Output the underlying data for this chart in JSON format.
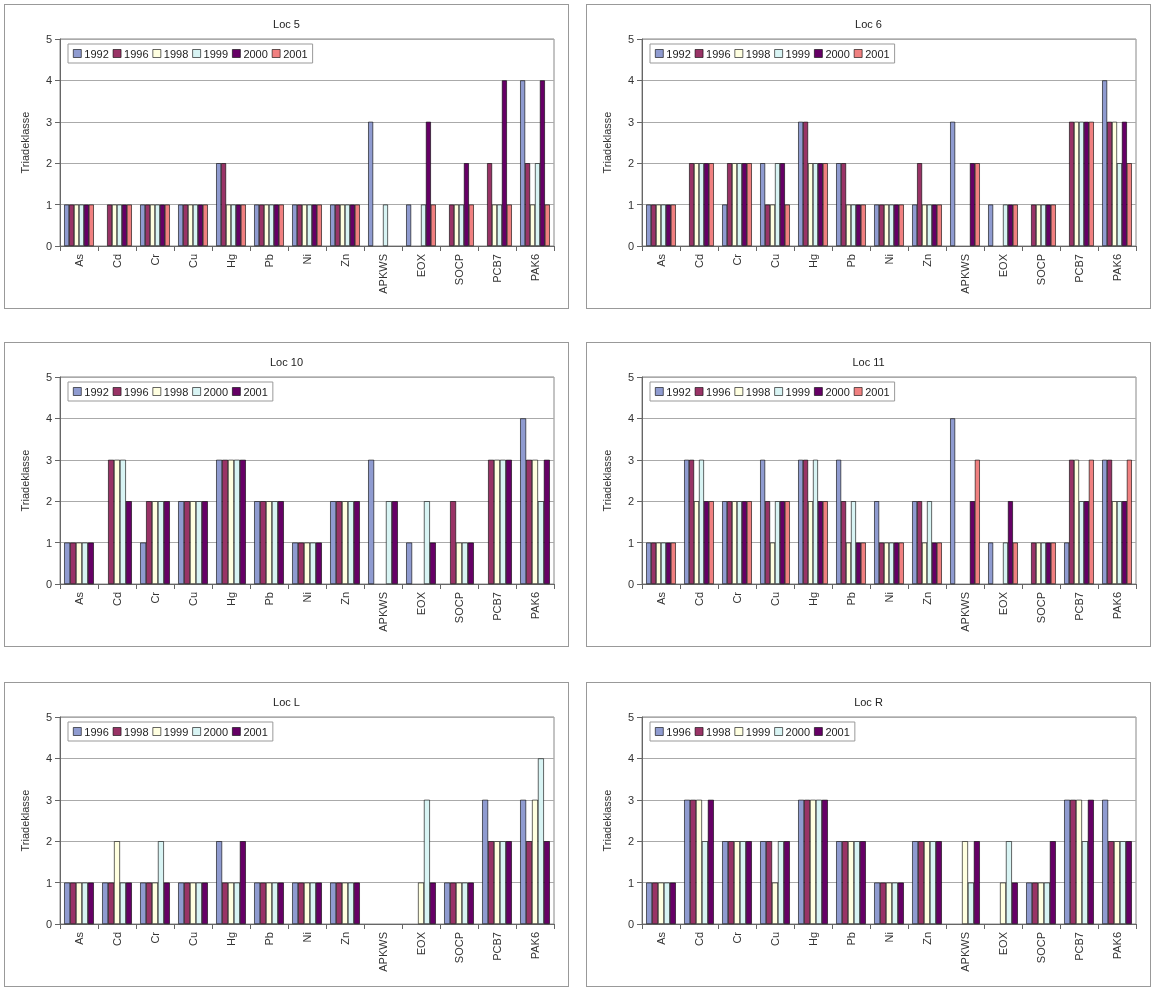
{
  "chart_data": [
    {
      "type": "bar",
      "title": "Loc 5",
      "ylabel": "Triadeklasse",
      "categories": [
        "As",
        "Cd",
        "Cr",
        "Cu",
        "Hg",
        "Pb",
        "Ni",
        "Zn",
        "APKWS",
        "EOX",
        "SOCP",
        "PCB7",
        "PAK6"
      ],
      "ylim": [
        0,
        5
      ],
      "yticks": [
        0,
        1,
        2,
        3,
        4,
        5
      ],
      "grid": "y",
      "legend": "top left",
      "series": [
        {
          "name": "1992",
          "color": "#8f9bd0",
          "values": [
            1,
            null,
            1,
            1,
            2,
            1,
            1,
            1,
            3,
            1,
            null,
            null,
            4
          ]
        },
        {
          "name": "1996",
          "color": "#993366",
          "values": [
            1,
            1,
            1,
            1,
            2,
            1,
            1,
            1,
            null,
            null,
            1,
            2,
            2
          ]
        },
        {
          "name": "1998",
          "color": "#ffffe0",
          "values": [
            1,
            1,
            1,
            1,
            1,
            1,
            1,
            1,
            null,
            null,
            1,
            1,
            1
          ]
        },
        {
          "name": "1999",
          "color": "#d8f4f4",
          "values": [
            1,
            1,
            1,
            1,
            1,
            1,
            1,
            1,
            1,
            1,
            1,
            1,
            2
          ]
        },
        {
          "name": "2000",
          "color": "#660066",
          "values": [
            1,
            1,
            1,
            1,
            1,
            1,
            1,
            1,
            null,
            3,
            2,
            4,
            4
          ]
        },
        {
          "name": "2001",
          "color": "#f08080",
          "values": [
            1,
            1,
            1,
            1,
            1,
            1,
            1,
            1,
            null,
            1,
            1,
            1,
            1
          ]
        }
      ]
    },
    {
      "type": "bar",
      "title": "Loc 6",
      "ylabel": "Triadeklasse",
      "categories": [
        "As",
        "Cd",
        "Cr",
        "Cu",
        "Hg",
        "Pb",
        "Ni",
        "Zn",
        "APKWS",
        "EOX",
        "SOCP",
        "PCB7",
        "PAK6"
      ],
      "ylim": [
        0,
        5
      ],
      "yticks": [
        0,
        1,
        2,
        3,
        4,
        5
      ],
      "grid": "y",
      "legend": "top left",
      "series": [
        {
          "name": "1992",
          "color": "#8f9bd0",
          "values": [
            1,
            null,
            1,
            2,
            3,
            2,
            1,
            1,
            3,
            1,
            null,
            null,
            4
          ]
        },
        {
          "name": "1996",
          "color": "#993366",
          "values": [
            1,
            2,
            2,
            1,
            3,
            2,
            1,
            2,
            null,
            null,
            1,
            3,
            3
          ]
        },
        {
          "name": "1998",
          "color": "#ffffe0",
          "values": [
            1,
            2,
            2,
            1,
            2,
            1,
            1,
            1,
            null,
            null,
            1,
            3,
            3
          ]
        },
        {
          "name": "1999",
          "color": "#d8f4f4",
          "values": [
            1,
            2,
            2,
            2,
            2,
            1,
            1,
            1,
            null,
            1,
            1,
            3,
            2
          ]
        },
        {
          "name": "2000",
          "color": "#660066",
          "values": [
            1,
            2,
            2,
            2,
            2,
            1,
            1,
            1,
            2,
            1,
            1,
            3,
            3
          ]
        },
        {
          "name": "2001",
          "color": "#f08080",
          "values": [
            1,
            2,
            2,
            1,
            2,
            1,
            1,
            1,
            2,
            1,
            1,
            3,
            2
          ]
        }
      ]
    },
    {
      "type": "bar",
      "title": "Loc 10",
      "ylabel": "Triadeklasse",
      "categories": [
        "As",
        "Cd",
        "Cr",
        "Cu",
        "Hg",
        "Pb",
        "Ni",
        "Zn",
        "APKWS",
        "EOX",
        "SOCP",
        "PCB7",
        "PAK6"
      ],
      "ylim": [
        0,
        5
      ],
      "yticks": [
        0,
        1,
        2,
        3,
        4,
        5
      ],
      "grid": "y",
      "legend": "top left",
      "series": [
        {
          "name": "1992",
          "color": "#8f9bd0",
          "values": [
            1,
            null,
            1,
            2,
            3,
            2,
            1,
            2,
            3,
            1,
            null,
            null,
            4
          ]
        },
        {
          "name": "1996",
          "color": "#993366",
          "values": [
            1,
            3,
            2,
            2,
            3,
            2,
            1,
            2,
            null,
            null,
            2,
            3,
            3
          ]
        },
        {
          "name": "1998",
          "color": "#ffffe0",
          "values": [
            1,
            3,
            2,
            2,
            3,
            2,
            1,
            2,
            null,
            null,
            1,
            3,
            3
          ]
        },
        {
          "name": "2000",
          "color": "#d8f4f4",
          "values": [
            1,
            3,
            2,
            2,
            3,
            2,
            1,
            2,
            2,
            2,
            1,
            3,
            2
          ]
        },
        {
          "name": "2001",
          "color": "#660066",
          "values": [
            1,
            2,
            2,
            2,
            3,
            2,
            1,
            2,
            2,
            1,
            1,
            3,
            3
          ]
        }
      ]
    },
    {
      "type": "bar",
      "title": "Loc 11",
      "ylabel": "Triadeklasse",
      "categories": [
        "As",
        "Cd",
        "Cr",
        "Cu",
        "Hg",
        "Pb",
        "Ni",
        "Zn",
        "APKWS",
        "EOX",
        "SOCP",
        "PCB7",
        "PAK6"
      ],
      "ylim": [
        0,
        5
      ],
      "yticks": [
        0,
        1,
        2,
        3,
        4,
        5
      ],
      "grid": "y",
      "legend": "top left",
      "series": [
        {
          "name": "1992",
          "color": "#8f9bd0",
          "values": [
            1,
            3,
            2,
            3,
            3,
            3,
            2,
            2,
            4,
            1,
            null,
            1,
            3
          ]
        },
        {
          "name": "1996",
          "color": "#993366",
          "values": [
            1,
            3,
            2,
            2,
            3,
            2,
            1,
            2,
            null,
            null,
            1,
            3,
            3
          ]
        },
        {
          "name": "1998",
          "color": "#ffffe0",
          "values": [
            1,
            2,
            2,
            1,
            2,
            1,
            1,
            1,
            null,
            null,
            1,
            3,
            2
          ]
        },
        {
          "name": "1999",
          "color": "#d8f4f4",
          "values": [
            1,
            3,
            2,
            2,
            3,
            2,
            1,
            2,
            null,
            1,
            1,
            2,
            2
          ]
        },
        {
          "name": "2000",
          "color": "#660066",
          "values": [
            1,
            2,
            2,
            2,
            2,
            1,
            1,
            1,
            2,
            2,
            1,
            2,
            2
          ]
        },
        {
          "name": "2001",
          "color": "#f08080",
          "values": [
            1,
            2,
            2,
            2,
            2,
            1,
            1,
            1,
            3,
            1,
            1,
            3,
            3
          ]
        }
      ]
    },
    {
      "type": "bar",
      "title": "Loc L",
      "ylabel": "Triadeklasse",
      "categories": [
        "As",
        "Cd",
        "Cr",
        "Cu",
        "Hg",
        "Pb",
        "Ni",
        "Zn",
        "APKWS",
        "EOX",
        "SOCP",
        "PCB7",
        "PAK6"
      ],
      "ylim": [
        0,
        5
      ],
      "yticks": [
        0,
        1,
        2,
        3,
        4,
        5
      ],
      "grid": "y",
      "legend": "top left",
      "series": [
        {
          "name": "1996",
          "color": "#8f9bd0",
          "values": [
            1,
            1,
            1,
            1,
            2,
            1,
            1,
            1,
            null,
            null,
            1,
            3,
            3
          ]
        },
        {
          "name": "1998",
          "color": "#993366",
          "values": [
            1,
            1,
            1,
            1,
            1,
            1,
            1,
            1,
            null,
            null,
            1,
            2,
            2
          ]
        },
        {
          "name": "1999",
          "color": "#ffffe0",
          "values": [
            1,
            2,
            1,
            1,
            1,
            1,
            1,
            1,
            null,
            1,
            1,
            2,
            3
          ]
        },
        {
          "name": "2000",
          "color": "#d8f4f4",
          "values": [
            1,
            1,
            2,
            1,
            1,
            1,
            1,
            1,
            null,
            3,
            1,
            2,
            4
          ]
        },
        {
          "name": "2001",
          "color": "#660066",
          "values": [
            1,
            1,
            1,
            1,
            2,
            1,
            1,
            1,
            null,
            1,
            1,
            2,
            2
          ]
        }
      ]
    },
    {
      "type": "bar",
      "title": "Loc R",
      "ylabel": "Triadeklasse",
      "categories": [
        "As",
        "Cd",
        "Cr",
        "Cu",
        "Hg",
        "Pb",
        "Ni",
        "Zn",
        "APKWS",
        "EOX",
        "SOCP",
        "PCB7",
        "PAK6"
      ],
      "ylim": [
        0,
        5
      ],
      "yticks": [
        0,
        1,
        2,
        3,
        4,
        5
      ],
      "grid": "y",
      "legend": "top left",
      "series": [
        {
          "name": "1996",
          "color": "#8f9bd0",
          "values": [
            1,
            3,
            2,
            2,
            3,
            2,
            1,
            2,
            null,
            null,
            1,
            3,
            3
          ]
        },
        {
          "name": "1998",
          "color": "#993366",
          "values": [
            1,
            3,
            2,
            2,
            3,
            2,
            1,
            2,
            null,
            null,
            1,
            3,
            2
          ]
        },
        {
          "name": "1999",
          "color": "#ffffe0",
          "values": [
            1,
            3,
            2,
            1,
            3,
            2,
            1,
            2,
            2,
            1,
            1,
            3,
            2
          ]
        },
        {
          "name": "2000",
          "color": "#d8f4f4",
          "values": [
            1,
            2,
            2,
            2,
            3,
            2,
            1,
            2,
            1,
            2,
            1,
            2,
            2
          ]
        },
        {
          "name": "2001",
          "color": "#660066",
          "values": [
            1,
            3,
            2,
            2,
            3,
            2,
            1,
            2,
            2,
            1,
            2,
            3,
            2
          ]
        }
      ]
    }
  ]
}
